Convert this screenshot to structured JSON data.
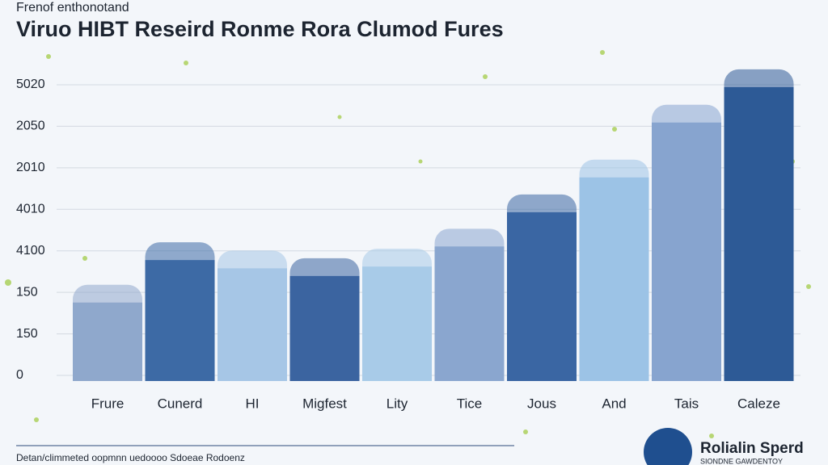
{
  "chart_data": {
    "type": "bar",
    "subtitle": "Frenof enthonotand",
    "title": "Viruo HIBT Reseird Ronme Rora Clumod Fures",
    "y_axis_labels": [
      "5020",
      "2050",
      "2010",
      "4010",
      "4100",
      "150",
      "150",
      "0"
    ],
    "ylim": [
      0,
      5020
    ],
    "categories": [
      "Frure",
      "Cunerd",
      "HI",
      "Migfest",
      "Lity",
      "Tice",
      "Jous",
      "And",
      "Tais",
      "Caleze"
    ],
    "values": [
      1330,
      2050,
      1910,
      1780,
      1940,
      2280,
      2860,
      3450,
      4380,
      4980
    ],
    "colors": [
      "#8fa8cc",
      "#3d6aa5",
      "#a6c6e6",
      "#3b64a0",
      "#a8cbe8",
      "#8aa6cf",
      "#3a66a3",
      "#9cc3e6",
      "#87a4cf",
      "#2d5a96"
    ],
    "footnote": "Detan/climmeted oopmnn uedoooo Sdoeae Rodoenz",
    "logo": {
      "name": "Rolialin Sperd",
      "tagline": "SIONDNE GAWDENTOY"
    }
  }
}
